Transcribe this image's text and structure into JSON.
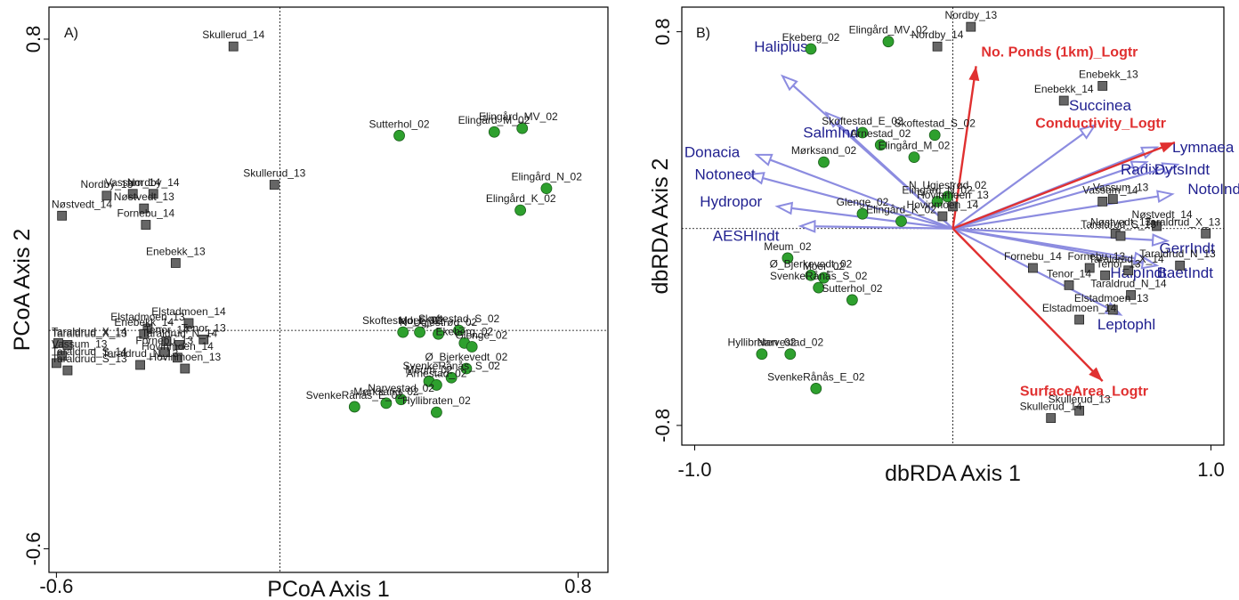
{
  "colors": {
    "square_fill": "#666666",
    "circle_fill": "#2ea02e",
    "species_arrow": "#8c8ce0",
    "species_text": "#1f1f8f",
    "env_arrow": "#e03030",
    "env_text": "#e03030"
  },
  "chart_data": [
    {
      "type": "scatter",
      "panel": "A)",
      "xlabel": "PCoA Axis 1",
      "ylabel": "PCoA Axis 2",
      "xlim": [
        -0.62,
        0.88
      ],
      "ylim": [
        -0.665,
        0.888
      ],
      "xticks": [
        "-0.6",
        "0.8"
      ],
      "yticks": [
        "0.8",
        "-0.6"
      ],
      "xtick_values": [
        -0.6,
        0.8
      ],
      "ytick_values": [
        0.8,
        -0.6
      ],
      "origin_lines": true,
      "series": [
        {
          "marker": "square",
          "points": [
            {
              "label": "Skullerud_14",
              "x": -0.125,
              "y": 0.78
            },
            {
              "label": "Skullerud_13",
              "x": -0.015,
              "y": 0.4
            },
            {
              "label": "Nordby_13",
              "x": -0.465,
              "y": 0.37
            },
            {
              "label": "Nordby_14",
              "x": -0.34,
              "y": 0.375
            },
            {
              "label": "Nøstvedt_14",
              "x": -0.585,
              "y": 0.315
            },
            {
              "label": "Nøstvedt_13",
              "x": -0.365,
              "y": 0.335
            },
            {
              "label": "Vassum_14",
              "x": -0.395,
              "y": 0.375
            },
            {
              "label": "Fornebu_14",
              "x": -0.36,
              "y": 0.29
            },
            {
              "label": "Enebekk_13",
              "x": -0.28,
              "y": 0.185
            },
            {
              "label": "Elstadmoen_14",
              "x": -0.245,
              "y": 0.02
            },
            {
              "label": "Elstadmoen_13",
              "x": -0.355,
              "y": 0.005
            },
            {
              "label": "Enebekk_14",
              "x": -0.365,
              "y": -0.01
            },
            {
              "label": "Tenor_13",
              "x": -0.205,
              "y": -0.025
            },
            {
              "label": "Tenor_14",
              "x": -0.305,
              "y": -0.03
            },
            {
              "label": "Taraldrud_X_14",
              "x": -0.595,
              "y": -0.035
            },
            {
              "label": "Taraldrud_X_13",
              "x": -0.57,
              "y": -0.04
            },
            {
              "label": "Taraldrud_N_14",
              "x": -0.27,
              "y": -0.04
            },
            {
              "label": "Vassum_13",
              "x": -0.585,
              "y": -0.07
            },
            {
              "label": "Fornebu_13",
              "x": -0.31,
              "y": -0.06
            },
            {
              "label": "Taraldrud_S_14",
              "x": -0.6,
              "y": -0.09
            },
            {
              "label": "Hovinmoen_14",
              "x": -0.275,
              "y": -0.075
            },
            {
              "label": "Taraldrud_N_13",
              "x": -0.375,
              "y": -0.095
            },
            {
              "label": "Taraldrud_S_13",
              "x": -0.57,
              "y": -0.11
            },
            {
              "label": "Hovinmoen_13",
              "x": -0.255,
              "y": -0.105
            }
          ]
        },
        {
          "marker": "circle",
          "points": [
            {
              "label": "Elingård_MV_02",
              "x": 0.65,
              "y": 0.555
            },
            {
              "label": "Elingård_M_02",
              "x": 0.575,
              "y": 0.545
            },
            {
              "label": "Sutterhol_02",
              "x": 0.32,
              "y": 0.535
            },
            {
              "label": "Elingård_N_02",
              "x": 0.715,
              "y": 0.39
            },
            {
              "label": "Elingård_K_02",
              "x": 0.645,
              "y": 0.33
            },
            {
              "label": "Skoftestad_S_02",
              "x": 0.48,
              "y": 0.0
            },
            {
              "label": "Skoftestad_E_02",
              "x": 0.33,
              "y": -0.005
            },
            {
              "label": "Moer_02",
              "x": 0.375,
              "y": -0.005
            },
            {
              "label": "N_Ugjestrød_02",
              "x": 0.425,
              "y": -0.01
            },
            {
              "label": "Ekeberg_02",
              "x": 0.495,
              "y": -0.035
            },
            {
              "label": "Glenge_02",
              "x": 0.515,
              "y": -0.045
            },
            {
              "label": "Ø_Bjerkevedt_02",
              "x": 0.5,
              "y": -0.105
            },
            {
              "label": "SvenkeRånås_S_02",
              "x": 0.46,
              "y": -0.13
            },
            {
              "label": "Meum_02",
              "x": 0.4,
              "y": -0.14
            },
            {
              "label": "Arnestad_02",
              "x": 0.42,
              "y": -0.15
            },
            {
              "label": "Narvestad_02",
              "x": 0.325,
              "y": -0.19
            },
            {
              "label": "Mørksand_02",
              "x": 0.285,
              "y": -0.2
            },
            {
              "label": "SvenkeRånås_E_02",
              "x": 0.2,
              "y": -0.21
            },
            {
              "label": "Hyllibraten_02",
              "x": 0.42,
              "y": -0.225
            }
          ]
        }
      ]
    },
    {
      "type": "scatter",
      "panel": "B)",
      "xlabel": "dbRDA Axis 1",
      "ylabel": "dbRDA Axis 2",
      "xlim": [
        -1.05,
        1.05
      ],
      "ylim": [
        -0.88,
        0.9
      ],
      "xticks": [
        "-1.0",
        "1.0"
      ],
      "yticks": [
        "0.8",
        "-0.8"
      ],
      "xtick_values": [
        -1.0,
        1.0
      ],
      "ytick_values": [
        0.8,
        -0.8
      ],
      "origin_lines": true,
      "series": [
        {
          "marker": "square",
          "points": [
            {
              "label": "Nordby_13",
              "x": 0.07,
              "y": 0.82
            },
            {
              "label": "Nordby_14",
              "x": -0.06,
              "y": 0.74
            },
            {
              "label": "Enebekk_13",
              "x": 0.58,
              "y": 0.58
            },
            {
              "label": "Enebekk_14",
              "x": 0.43,
              "y": 0.52
            },
            {
              "label": "Vassum_13",
              "x": 0.62,
              "y": 0.12
            },
            {
              "label": "Vassum_14",
              "x": 0.58,
              "y": 0.11
            },
            {
              "label": "Nøstvedt_14",
              "x": 0.79,
              "y": 0.01
            },
            {
              "label": "Nøstvedt_13",
              "x": 0.63,
              "y": -0.02
            },
            {
              "label": "Taraldrud_S_13",
              "x": 0.65,
              "y": -0.03
            },
            {
              "label": "Taraldrud_X_13",
              "x": 0.98,
              "y": -0.02
            },
            {
              "label": "Taraldrud_N_13",
              "x": 0.88,
              "y": -0.15
            },
            {
              "label": "Taraldrud_X_14",
              "x": 0.68,
              "y": -0.17
            },
            {
              "label": "Fornebu_13",
              "x": 0.53,
              "y": -0.16
            },
            {
              "label": "Fornebu_14",
              "x": 0.31,
              "y": -0.16
            },
            {
              "label": "Tenor_13",
              "x": 0.59,
              "y": -0.19
            },
            {
              "label": "Tenor_14",
              "x": 0.45,
              "y": -0.23
            },
            {
              "label": "Taraldrud_N_14",
              "x": 0.69,
              "y": -0.27
            },
            {
              "label": "Elstadmoen_13",
              "x": 0.62,
              "y": -0.33
            },
            {
              "label": "Elstadmoen_14",
              "x": 0.49,
              "y": -0.37
            },
            {
              "label": "Skullerud_13",
              "x": 0.49,
              "y": -0.74
            },
            {
              "label": "Skullerud_14",
              "x": 0.38,
              "y": -0.77
            },
            {
              "label": "Hovinmoen_13",
              "x": 0.0,
              "y": 0.09
            },
            {
              "label": "Hovinmoen_14",
              "x": -0.04,
              "y": 0.05
            }
          ]
        },
        {
          "marker": "circle",
          "points": [
            {
              "label": "Ekeberg_02",
              "x": -0.55,
              "y": 0.73
            },
            {
              "label": "Elingård_MV_02",
              "x": -0.25,
              "y": 0.76
            },
            {
              "label": "Skoftestad_E_02",
              "x": -0.35,
              "y": 0.39
            },
            {
              "label": "Skoftestad_S_02",
              "x": -0.07,
              "y": 0.38
            },
            {
              "label": "Elingård_M_02",
              "x": -0.15,
              "y": 0.29
            },
            {
              "label": "Arnestad_02",
              "x": -0.28,
              "y": 0.34
            },
            {
              "label": "Mørksand_02",
              "x": -0.5,
              "y": 0.27
            },
            {
              "label": "N_Ugjestrød_02",
              "x": -0.02,
              "y": 0.13
            },
            {
              "label": "Elingård_N_02",
              "x": -0.06,
              "y": 0.11
            },
            {
              "label": "Glenge_02",
              "x": -0.35,
              "y": 0.06
            },
            {
              "label": "Elingård_K_02",
              "x": -0.2,
              "y": 0.03
            },
            {
              "label": "Meum_02",
              "x": -0.64,
              "y": -0.12
            },
            {
              "label": "Ø_Bjerkevedt_02",
              "x": -0.55,
              "y": -0.19
            },
            {
              "label": "Moer_02",
              "x": -0.5,
              "y": -0.2
            },
            {
              "label": "SvenkeRånås_S_02",
              "x": -0.52,
              "y": -0.24
            },
            {
              "label": "Sutterhol_02",
              "x": -0.39,
              "y": -0.29
            },
            {
              "label": "Hyllibraten_02",
              "x": -0.74,
              "y": -0.51
            },
            {
              "label": "Narvestad_02",
              "x": -0.63,
              "y": -0.51
            },
            {
              "label": "SvenkeRånås_E_02",
              "x": -0.53,
              "y": -0.65
            }
          ]
        }
      ],
      "vectors": [
        {
          "label": "Haliplus",
          "x": -0.66,
          "y": 0.62,
          "kind": "species",
          "lx": -0.77,
          "ly": 0.72
        },
        {
          "label": "SalmIndt",
          "x": -0.49,
          "y": 0.47,
          "kind": "species",
          "lx": -0.58,
          "ly": 0.37
        },
        {
          "label": "Donacia",
          "x": -0.76,
          "y": 0.3,
          "kind": "species",
          "lx": -1.04,
          "ly": 0.29
        },
        {
          "label": "Notonect",
          "x": -0.79,
          "y": 0.22,
          "kind": "species",
          "lx": -1.0,
          "ly": 0.2
        },
        {
          "label": "Hydropor",
          "x": -0.68,
          "y": 0.09,
          "kind": "species",
          "lx": -0.98,
          "ly": 0.09
        },
        {
          "label": "AESHIndt",
          "x": -0.59,
          "y": 0.01,
          "kind": "species",
          "lx": -0.93,
          "ly": -0.05
        },
        {
          "label": "Succinea",
          "x": 0.55,
          "y": 0.42,
          "kind": "species",
          "lx": 0.45,
          "ly": 0.48
        },
        {
          "label": "Lymnaea",
          "x": 0.79,
          "y": 0.33,
          "kind": "species",
          "lx": 0.85,
          "ly": 0.31
        },
        {
          "label": "Radix",
          "x": 0.75,
          "y": 0.27,
          "kind": "species",
          "lx": 0.65,
          "ly": 0.22
        },
        {
          "label": "DytsIndt",
          "x": 0.87,
          "y": 0.26,
          "kind": "species",
          "lx": 0.78,
          "ly": 0.22
        },
        {
          "label": "NotoIndt",
          "x": 0.85,
          "y": 0.14,
          "kind": "species",
          "lx": 0.91,
          "ly": 0.14
        },
        {
          "label": "GerrIndt",
          "x": 0.83,
          "y": -0.05,
          "kind": "species",
          "lx": 0.8,
          "ly": -0.1
        },
        {
          "label": "HalpIndt",
          "x": 0.76,
          "y": -0.13,
          "kind": "species",
          "lx": 0.61,
          "ly": -0.2
        },
        {
          "label": "BaetIndt",
          "x": 0.79,
          "y": -0.15,
          "kind": "species",
          "lx": 0.79,
          "ly": -0.2
        },
        {
          "label": "Leptophl",
          "x": 0.65,
          "y": -0.35,
          "kind": "species",
          "lx": 0.56,
          "ly": -0.41
        },
        {
          "label": "No. Ponds (1km)_Logtr",
          "x": 0.09,
          "y": 0.66,
          "kind": "env",
          "lx": 0.11,
          "ly": 0.7
        },
        {
          "label": "Conductivity_Logtr",
          "x": 0.86,
          "y": 0.35,
          "kind": "env",
          "lx": 0.32,
          "ly": 0.41
        },
        {
          "label": "SurfaceArea_Logtr",
          "x": 0.58,
          "y": -0.62,
          "kind": "env",
          "lx": 0.26,
          "ly": -0.68
        }
      ]
    }
  ]
}
